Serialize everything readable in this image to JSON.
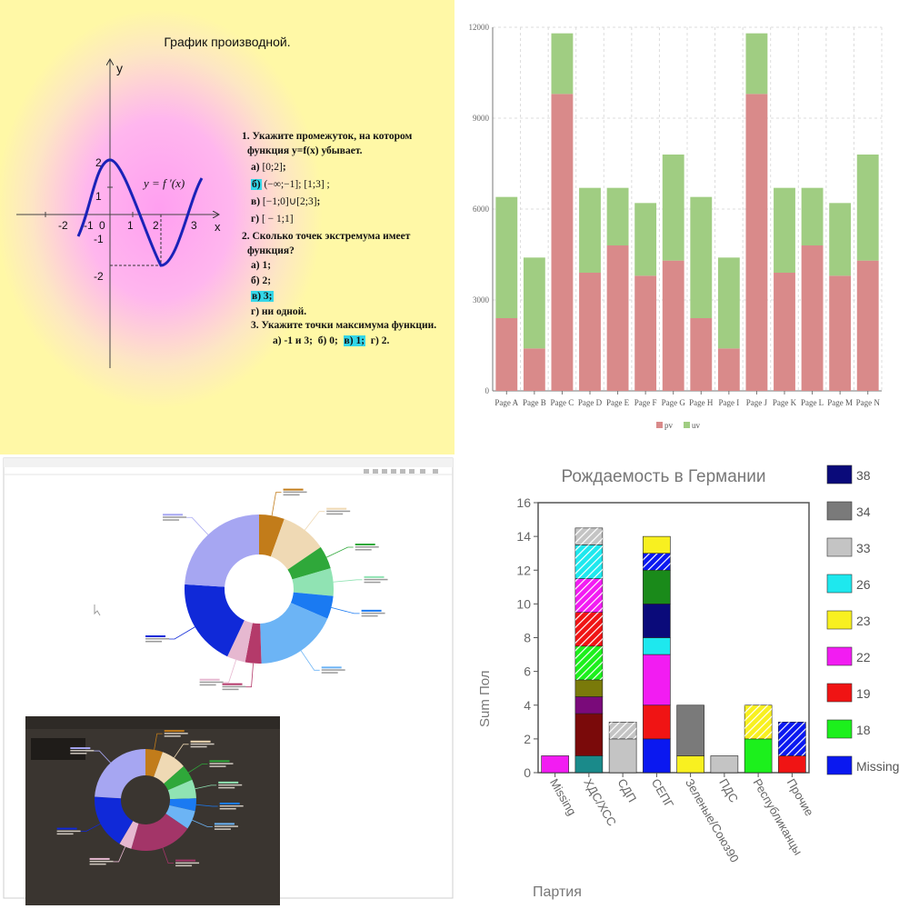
{
  "panel1": {
    "title": "График производной.",
    "y_axis_label": "y",
    "x_axis_label": "x",
    "function_label": "y = f ′(x)",
    "x_ticks": [
      "-2",
      "-1",
      "0",
      "1",
      "2",
      "3"
    ],
    "y_ticks": [
      "2",
      "1",
      "-1",
      "-2"
    ],
    "questions": [
      {
        "text": "1.   Укажите промежуток, на котором",
        "cont": "функция y=f(x) убывает.",
        "options": [
          {
            "label": "а)",
            "value": "[0;2]",
            "tail": ";",
            "highlight": false
          },
          {
            "label": "б)",
            "value": "(−∞;−1]",
            "tail": "; [1;3] ;",
            "highlight": true
          },
          {
            "label": "в)",
            "value": "[−1;0]∪[2;3]",
            "tail": ";",
            "highlight": false
          },
          {
            "label": "г)",
            "value": "[ − 1;1]",
            "tail": "",
            "highlight": false
          }
        ]
      },
      {
        "text": "2.   Сколько точек экстремума имеет",
        "cont": "функция?",
        "options": [
          {
            "label": "а) 1;",
            "highlight": false
          },
          {
            "label": "б)  2;",
            "highlight": false
          },
          {
            "label": "в) 3;",
            "highlight": true
          },
          {
            "label": "г) ни одной.",
            "highlight": false
          }
        ]
      }
    ],
    "q3": {
      "text": "3. Укажите точки максимума функции.",
      "a": "а) -1 и 3;",
      "b": "б) 0;",
      "c": "в) 1;",
      "d": "г) 2."
    }
  },
  "chart_data": [
    {
      "type": "bar",
      "stacked": true,
      "title": "",
      "categories": [
        "Page A",
        "Page B",
        "Page C",
        "Page D",
        "Page E",
        "Page F",
        "Page G",
        "Page H",
        "Page I",
        "Page J",
        "Page K",
        "Page L",
        "Page M",
        "Page N"
      ],
      "series": [
        {
          "name": "pv",
          "color": "#d98a8a",
          "values": [
            2400,
            1400,
            9800,
            3900,
            4800,
            3800,
            4300,
            2400,
            1400,
            9800,
            3900,
            4800,
            3800,
            4300
          ]
        },
        {
          "name": "uv",
          "color": "#a0cd82",
          "values": [
            4000,
            3000,
            2000,
            2800,
            1900,
            2400,
            3500,
            4000,
            3000,
            2000,
            2800,
            1900,
            2400,
            3500
          ]
        }
      ],
      "ylim": [
        0,
        12000
      ],
      "y_ticks": [
        "0",
        "3000",
        "6000",
        "9000",
        "12000"
      ],
      "grid": true,
      "legend": "bottom"
    },
    {
      "type": "pie",
      "donut": true,
      "title": "",
      "slices": [
        {
          "value": 5.5,
          "color": "#c27c1a"
        },
        {
          "value": 10.0,
          "color": "#efd9b4"
        },
        {
          "value": 5.0,
          "color": "#2fa83a"
        },
        {
          "value": 6.0,
          "color": "#90e3b3"
        },
        {
          "value": 5.0,
          "color": "#1a7af2"
        },
        {
          "value": 18.0,
          "color": "#6cb4f5"
        },
        {
          "value": 3.5,
          "color": "#b43a6a"
        },
        {
          "value": 4.0,
          "color": "#e6b8d0"
        },
        {
          "value": 19.0,
          "color": "#1029d8"
        },
        {
          "value": 24.0,
          "color": "#a6a6f2"
        }
      ],
      "legend": "none"
    },
    {
      "type": "pie",
      "donut": true,
      "title": "",
      "slices": [
        {
          "value": 5.5,
          "color": "#c27c1a"
        },
        {
          "value": 8.0,
          "color": "#efd9b4"
        },
        {
          "value": 5.0,
          "color": "#2fa83a"
        },
        {
          "value": 6.0,
          "color": "#90e3b3"
        },
        {
          "value": 4.0,
          "color": "#1a7af2"
        },
        {
          "value": 6.0,
          "color": "#6cb4f5"
        },
        {
          "value": 20.0,
          "color": "#a33568"
        },
        {
          "value": 4.0,
          "color": "#e6b8d0"
        },
        {
          "value": 17.5,
          "color": "#1029d8"
        },
        {
          "value": 24.0,
          "color": "#a6a6f2"
        }
      ],
      "legend": "none"
    },
    {
      "type": "bar",
      "stacked": true,
      "title": "Рождаемость в Германии",
      "xlabel": "Партия",
      "ylabel": "Sum Пол",
      "categories": [
        "Missing",
        "ХДС/ХСС",
        "СДП",
        "СЕПГ",
        "Зеленые/Союз90",
        "ПДС",
        "Республиканцы",
        "Прочие"
      ],
      "ylim": [
        0,
        16
      ],
      "y_ticks": [
        "0",
        "2",
        "4",
        "6",
        "8",
        "10",
        "12",
        "14",
        "16"
      ],
      "legend_entries": [
        {
          "name": "38",
          "color": "#0a0a7a"
        },
        {
          "name": "34",
          "color": "#7a7a7a"
        },
        {
          "name": "33",
          "color": "#c4c4c4"
        },
        {
          "name": "26",
          "color": "#1ee8ee"
        },
        {
          "name": "23",
          "color": "#f8f020"
        },
        {
          "name": "22",
          "color": "#f21cf2"
        },
        {
          "name": "19",
          "color": "#f01414"
        },
        {
          "name": "18",
          "color": "#1cf01c"
        },
        {
          "name": "Missing",
          "color": "#0a18f0"
        }
      ],
      "stacks": [
        [
          {
            "v": 1,
            "c": "#f21cf2"
          }
        ],
        [
          {
            "v": 1,
            "c": "#1a8a8a"
          },
          {
            "v": 2.5,
            "c": "#7a0a0a"
          },
          {
            "v": 1,
            "c": "#7a0a7a"
          },
          {
            "v": 1,
            "c": "#7a7a0a"
          },
          {
            "v": 2,
            "c": "#1cf01c",
            "h": true
          },
          {
            "v": 2,
            "c": "#f01414",
            "h": true
          },
          {
            "v": 2,
            "c": "#f21cf2",
            "h": true
          },
          {
            "v": 2,
            "c": "#1ee8ee",
            "h": true
          },
          {
            "v": 1,
            "c": "#c4c4c4",
            "h": true
          }
        ],
        [
          {
            "v": 2,
            "c": "#c4c4c4"
          },
          {
            "v": 1,
            "c": "#c4c4c4",
            "h": true
          }
        ],
        [
          {
            "v": 2,
            "c": "#0a18f0"
          },
          {
            "v": 2,
            "c": "#f01414"
          },
          {
            "v": 3,
            "c": "#f21cf2"
          },
          {
            "v": 1,
            "c": "#1ee8ee"
          },
          {
            "v": 2,
            "c": "#0a0a7a"
          },
          {
            "v": 2,
            "c": "#1a8a1a"
          },
          {
            "v": 1,
            "c": "#0a18f0",
            "h": true
          },
          {
            "v": 1,
            "c": "#f8f020"
          }
        ],
        [
          {
            "v": 1,
            "c": "#f8f020"
          },
          {
            "v": 3,
            "c": "#7a7a7a"
          }
        ],
        [
          {
            "v": 1,
            "c": "#c4c4c4"
          }
        ],
        [
          {
            "v": 2,
            "c": "#1cf01c"
          },
          {
            "v": 2,
            "c": "#f8f020",
            "h": true
          }
        ],
        [
          {
            "v": 1,
            "c": "#f01414"
          },
          {
            "v": 2,
            "c": "#0a18f0",
            "h": true
          }
        ]
      ],
      "grid": false,
      "legend": "right"
    }
  ]
}
